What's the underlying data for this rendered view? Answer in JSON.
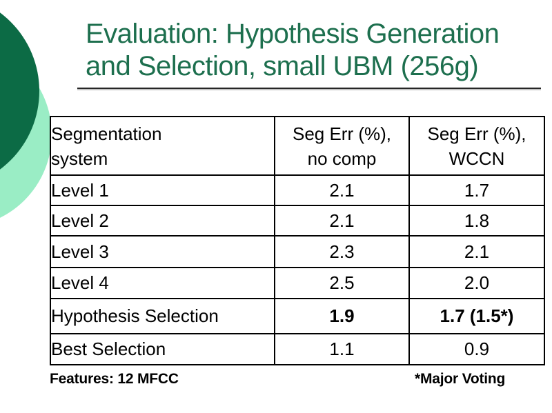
{
  "slide": {
    "title": {
      "line1": "Evaluation: Hypothesis Generation",
      "line2": "and Selection, small UBM (256g)"
    },
    "footer_left": "Features: 12 MFCC",
    "footer_right": "*Major Voting"
  },
  "table": {
    "headers": [
      {
        "line1": "Segmentation",
        "line2": "system"
      },
      {
        "line1": "Seg Err (%),",
        "line2": "no comp"
      },
      {
        "line1": "Seg Err (%),",
        "line2": "WCCN"
      }
    ],
    "rows": [
      {
        "system": "Level 1",
        "no_comp": "2.1",
        "wccn": "1.7"
      },
      {
        "system": "Level 2",
        "no_comp": "2.1",
        "wccn": "1.8"
      },
      {
        "system": "Level 3",
        "no_comp": "2.3",
        "wccn": "2.1"
      },
      {
        "system": "Level 4",
        "no_comp": "2.5",
        "wccn": "2.0"
      },
      {
        "system": "Hypothesis Selection",
        "no_comp": "1.9",
        "wccn": "1.7 (1.5*)"
      },
      {
        "system": "Best Selection",
        "no_comp": "1.1",
        "wccn": "0.9"
      }
    ]
  },
  "colors": {
    "title_green": "#1d6f4e",
    "dark_circle": "#0c6b45",
    "light_circle": "#9aedc5",
    "table_border": "#000000"
  }
}
